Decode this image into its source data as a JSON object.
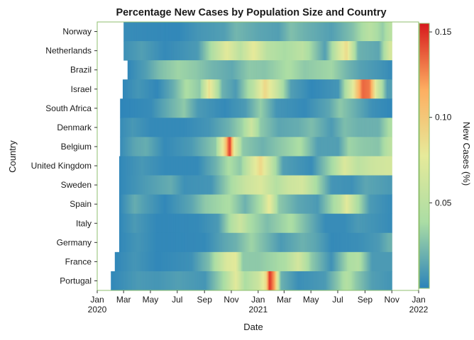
{
  "chart_data": {
    "type": "heatmap",
    "title": "Percentage New Cases by Population Size and Country",
    "xlabel": "Date",
    "ylabel": "Country",
    "colorbar_label": "New Cases (%)",
    "countries": [
      "Norway",
      "Netherlands",
      "Brazil",
      "Israel",
      "South Africa",
      "Denmark",
      "Belgium",
      "United Kingdom",
      "Sweden",
      "Spain",
      "Italy",
      "Germany",
      "France",
      "Portugal"
    ],
    "x_range": [
      "2020-01-01",
      "2022-01-01"
    ],
    "x_ticks": [
      {
        "date": "2020-01-01",
        "label": "Jan",
        "sub": "2020"
      },
      {
        "date": "2020-03-01",
        "label": "Mar",
        "sub": ""
      },
      {
        "date": "2020-05-01",
        "label": "May",
        "sub": ""
      },
      {
        "date": "2020-07-01",
        "label": "Jul",
        "sub": ""
      },
      {
        "date": "2020-09-01",
        "label": "Sep",
        "sub": ""
      },
      {
        "date": "2020-11-01",
        "label": "Nov",
        "sub": ""
      },
      {
        "date": "2021-01-01",
        "label": "Jan",
        "sub": "2021"
      },
      {
        "date": "2021-03-01",
        "label": "Mar",
        "sub": ""
      },
      {
        "date": "2021-05-01",
        "label": "May",
        "sub": ""
      },
      {
        "date": "2021-07-01",
        "label": "Jul",
        "sub": ""
      },
      {
        "date": "2021-09-01",
        "label": "Sep",
        "sub": ""
      },
      {
        "date": "2021-11-01",
        "label": "Nov",
        "sub": ""
      },
      {
        "date": "2022-01-01",
        "label": "Jan",
        "sub": "2022"
      }
    ],
    "colorbar_ticks": [
      {
        "value": 0.05,
        "label": "0.05"
      },
      {
        "value": 0.1,
        "label": "0.10"
      },
      {
        "value": 0.15,
        "label": "0.15"
      }
    ],
    "color_range": [
      0,
      0.155
    ],
    "colorscale": [
      "#2b83ba",
      "#abdda4",
      "#e6ea9a",
      "#fdae61",
      "#d7191c"
    ],
    "data_end": "2021-11-01",
    "series": [
      {
        "name": "Norway",
        "start": "2020-03-01",
        "values": [
          [
            "2020-03-01",
            0.004
          ],
          [
            "2020-07-01",
            0.002
          ],
          [
            "2020-08-15",
            0.008
          ],
          [
            "2020-10-15",
            0.012
          ],
          [
            "2020-11-10",
            0.022
          ],
          [
            "2021-01-01",
            0.015
          ],
          [
            "2021-02-15",
            0.012
          ],
          [
            "2021-03-15",
            0.026
          ],
          [
            "2021-04-15",
            0.02
          ],
          [
            "2021-06-15",
            0.012
          ],
          [
            "2021-08-01",
            0.026
          ],
          [
            "2021-09-10",
            0.048
          ],
          [
            "2021-10-10",
            0.032
          ],
          [
            "2021-10-25",
            0.048
          ]
        ]
      },
      {
        "name": "Netherlands",
        "start": "2020-03-01",
        "values": [
          [
            "2020-03-01",
            0.006
          ],
          [
            "2020-04-10",
            0.012
          ],
          [
            "2020-06-01",
            0.003
          ],
          [
            "2020-08-15",
            0.01
          ],
          [
            "2020-09-20",
            0.045
          ],
          [
            "2020-10-20",
            0.075
          ],
          [
            "2020-11-20",
            0.05
          ],
          [
            "2020-12-20",
            0.078
          ],
          [
            "2021-01-20",
            0.048
          ],
          [
            "2021-03-01",
            0.038
          ],
          [
            "2021-04-10",
            0.05
          ],
          [
            "2021-06-01",
            0.012
          ],
          [
            "2021-07-05",
            0.07
          ],
          [
            "2021-07-20",
            0.088
          ],
          [
            "2021-08-15",
            0.02
          ],
          [
            "2021-10-01",
            0.015
          ],
          [
            "2021-10-25",
            0.065
          ]
        ]
      },
      {
        "name": "Brazil",
        "start": "2020-03-10",
        "values": [
          [
            "2020-03-10",
            0.002
          ],
          [
            "2020-04-20",
            0.012
          ],
          [
            "2020-05-20",
            0.025
          ],
          [
            "2020-07-01",
            0.035
          ],
          [
            "2020-08-10",
            0.03
          ],
          [
            "2020-09-15",
            0.022
          ],
          [
            "2020-11-01",
            0.016
          ],
          [
            "2020-12-10",
            0.03
          ],
          [
            "2021-01-15",
            0.028
          ],
          [
            "2021-03-10",
            0.04
          ],
          [
            "2021-04-15",
            0.03
          ],
          [
            "2021-06-15",
            0.036
          ],
          [
            "2021-07-20",
            0.022
          ],
          [
            "2021-08-20",
            0.013
          ],
          [
            "2021-10-01",
            0.008
          ],
          [
            "2021-10-25",
            0.004
          ]
        ]
      },
      {
        "name": "Israel",
        "start": "2020-02-28",
        "values": [
          [
            "2020-02-28",
            0.002
          ],
          [
            "2020-04-01",
            0.008
          ],
          [
            "2020-05-15",
            0.002
          ],
          [
            "2020-06-20",
            0.018
          ],
          [
            "2020-07-20",
            0.04
          ],
          [
            "2020-08-20",
            0.03
          ],
          [
            "2020-09-10",
            0.085
          ],
          [
            "2020-10-10",
            0.02
          ],
          [
            "2020-11-10",
            0.01
          ],
          [
            "2020-12-20",
            0.05
          ],
          [
            "2021-01-15",
            0.09
          ],
          [
            "2021-02-10",
            0.06
          ],
          [
            "2021-03-15",
            0.012
          ],
          [
            "2021-05-01",
            0.002
          ],
          [
            "2021-07-01",
            0.008
          ],
          [
            "2021-08-01",
            0.07
          ],
          [
            "2021-08-25",
            0.135
          ],
          [
            "2021-09-10",
            0.13
          ],
          [
            "2021-09-25",
            0.07
          ],
          [
            "2021-10-20",
            0.012
          ]
        ]
      },
      {
        "name": "South Africa",
        "start": "2020-02-22",
        "values": [
          [
            "2020-02-22",
            0.001
          ],
          [
            "2020-05-01",
            0.004
          ],
          [
            "2020-06-15",
            0.02
          ],
          [
            "2020-07-15",
            0.03
          ],
          [
            "2020-08-15",
            0.01
          ],
          [
            "2020-10-15",
            0.003
          ],
          [
            "2020-12-01",
            0.01
          ],
          [
            "2021-01-05",
            0.032
          ],
          [
            "2021-02-10",
            0.008
          ],
          [
            "2021-04-15",
            0.003
          ],
          [
            "2021-06-10",
            0.015
          ],
          [
            "2021-07-05",
            0.03
          ],
          [
            "2021-08-10",
            0.018
          ],
          [
            "2021-09-15",
            0.006
          ],
          [
            "2021-10-25",
            0.002
          ]
        ]
      },
      {
        "name": "Denmark",
        "start": "2020-02-22",
        "values": [
          [
            "2020-02-22",
            0.004
          ],
          [
            "2020-03-20",
            0.009
          ],
          [
            "2020-05-01",
            0.003
          ],
          [
            "2020-07-15",
            0.003
          ],
          [
            "2020-09-10",
            0.008
          ],
          [
            "2020-10-25",
            0.02
          ],
          [
            "2020-11-25",
            0.035
          ],
          [
            "2020-12-15",
            0.06
          ],
          [
            "2021-01-05",
            0.03
          ],
          [
            "2021-02-15",
            0.015
          ],
          [
            "2021-04-01",
            0.018
          ],
          [
            "2021-05-01",
            0.025
          ],
          [
            "2021-06-15",
            0.01
          ],
          [
            "2021-07-15",
            0.025
          ],
          [
            "2021-08-15",
            0.02
          ],
          [
            "2021-10-01",
            0.02
          ],
          [
            "2021-10-25",
            0.04
          ]
        ]
      },
      {
        "name": "Belgium",
        "start": "2020-02-22",
        "values": [
          [
            "2020-02-22",
            0.004
          ],
          [
            "2020-03-25",
            0.015
          ],
          [
            "2020-04-20",
            0.018
          ],
          [
            "2020-06-01",
            0.003
          ],
          [
            "2020-08-01",
            0.01
          ],
          [
            "2020-09-25",
            0.03
          ],
          [
            "2020-10-15",
            0.09
          ],
          [
            "2020-10-27",
            0.15
          ],
          [
            "2020-11-05",
            0.08
          ],
          [
            "2020-11-25",
            0.03
          ],
          [
            "2021-01-10",
            0.02
          ],
          [
            "2021-03-15",
            0.035
          ],
          [
            "2021-04-05",
            0.04
          ],
          [
            "2021-05-15",
            0.012
          ],
          [
            "2021-07-01",
            0.012
          ],
          [
            "2021-07-25",
            0.035
          ],
          [
            "2021-08-25",
            0.03
          ],
          [
            "2021-10-01",
            0.028
          ],
          [
            "2021-10-25",
            0.05
          ]
        ]
      },
      {
        "name": "United Kingdom",
        "start": "2020-02-20",
        "values": [
          [
            "2020-02-20",
            0.002
          ],
          [
            "2020-04-10",
            0.009
          ],
          [
            "2020-06-01",
            0.003
          ],
          [
            "2020-08-15",
            0.003
          ],
          [
            "2020-09-25",
            0.02
          ],
          [
            "2020-10-25",
            0.04
          ],
          [
            "2020-11-20",
            0.03
          ],
          [
            "2020-12-15",
            0.065
          ],
          [
            "2021-01-05",
            0.09
          ],
          [
            "2021-01-25",
            0.06
          ],
          [
            "2021-02-25",
            0.012
          ],
          [
            "2021-05-01",
            0.004
          ],
          [
            "2021-06-20",
            0.04
          ],
          [
            "2021-07-15",
            0.07
          ],
          [
            "2021-08-15",
            0.05
          ],
          [
            "2021-09-15",
            0.06
          ],
          [
            "2021-10-20",
            0.065
          ]
        ]
      },
      {
        "name": "Sweden",
        "start": "2020-02-20",
        "values": [
          [
            "2020-02-20",
            0.002
          ],
          [
            "2020-04-15",
            0.01
          ],
          [
            "2020-06-15",
            0.018
          ],
          [
            "2020-07-15",
            0.006
          ],
          [
            "2020-09-15",
            0.008
          ],
          [
            "2020-10-25",
            0.035
          ],
          [
            "2020-12-05",
            0.06
          ],
          [
            "2021-01-05",
            0.07
          ],
          [
            "2021-02-10",
            0.045
          ],
          [
            "2021-03-10",
            0.06
          ],
          [
            "2021-04-10",
            0.065
          ],
          [
            "2021-05-10",
            0.04
          ],
          [
            "2021-06-15",
            0.008
          ],
          [
            "2021-08-01",
            0.006
          ],
          [
            "2021-09-01",
            0.015
          ],
          [
            "2021-10-25",
            0.01
          ]
        ]
      },
      {
        "name": "Spain",
        "start": "2020-02-20",
        "values": [
          [
            "2020-02-20",
            0.002
          ],
          [
            "2020-03-25",
            0.018
          ],
          [
            "2020-04-15",
            0.012
          ],
          [
            "2020-06-01",
            0.002
          ],
          [
            "2020-08-01",
            0.015
          ],
          [
            "2020-09-01",
            0.03
          ],
          [
            "2020-10-25",
            0.04
          ],
          [
            "2020-12-01",
            0.02
          ],
          [
            "2021-01-05",
            0.04
          ],
          [
            "2021-01-25",
            0.08
          ],
          [
            "2021-02-15",
            0.03
          ],
          [
            "2021-04-01",
            0.015
          ],
          [
            "2021-05-15",
            0.01
          ],
          [
            "2021-07-05",
            0.05
          ],
          [
            "2021-07-20",
            0.075
          ],
          [
            "2021-08-10",
            0.045
          ],
          [
            "2021-09-10",
            0.01
          ],
          [
            "2021-10-25",
            0.004
          ]
        ]
      },
      {
        "name": "Italy",
        "start": "2020-02-20",
        "values": [
          [
            "2020-02-20",
            0.002
          ],
          [
            "2020-03-25",
            0.01
          ],
          [
            "2020-05-15",
            0.002
          ],
          [
            "2020-08-15",
            0.003
          ],
          [
            "2020-10-01",
            0.01
          ],
          [
            "2020-11-01",
            0.045
          ],
          [
            "2020-11-20",
            0.06
          ],
          [
            "2020-12-10",
            0.04
          ],
          [
            "2021-01-20",
            0.025
          ],
          [
            "2021-03-15",
            0.04
          ],
          [
            "2021-04-25",
            0.02
          ],
          [
            "2021-06-01",
            0.004
          ],
          [
            "2021-07-15",
            0.004
          ],
          [
            "2021-08-15",
            0.01
          ],
          [
            "2021-10-25",
            0.004
          ]
        ]
      },
      {
        "name": "Germany",
        "start": "2020-02-20",
        "values": [
          [
            "2020-02-20",
            0.002
          ],
          [
            "2020-04-01",
            0.008
          ],
          [
            "2020-05-15",
            0.002
          ],
          [
            "2020-09-01",
            0.003
          ],
          [
            "2020-10-15",
            0.015
          ],
          [
            "2020-11-10",
            0.02
          ],
          [
            "2020-12-15",
            0.035
          ],
          [
            "2021-01-10",
            0.025
          ],
          [
            "2021-02-20",
            0.01
          ],
          [
            "2021-04-10",
            0.02
          ],
          [
            "2021-05-10",
            0.015
          ],
          [
            "2021-06-15",
            0.003
          ],
          [
            "2021-08-15",
            0.005
          ],
          [
            "2021-10-01",
            0.01
          ],
          [
            "2021-10-25",
            0.02
          ]
        ]
      },
      {
        "name": "France",
        "start": "2020-02-10",
        "values": [
          [
            "2020-02-10",
            0.002
          ],
          [
            "2020-03-25",
            0.008
          ],
          [
            "2020-05-15",
            0.002
          ],
          [
            "2020-08-01",
            0.006
          ],
          [
            "2020-09-10",
            0.025
          ],
          [
            "2020-10-20",
            0.07
          ],
          [
            "2020-11-10",
            0.075
          ],
          [
            "2020-11-25",
            0.03
          ],
          [
            "2021-01-01",
            0.03
          ],
          [
            "2021-03-01",
            0.04
          ],
          [
            "2021-04-01",
            0.065
          ],
          [
            "2021-05-01",
            0.03
          ],
          [
            "2021-06-15",
            0.006
          ],
          [
            "2021-07-25",
            0.04
          ],
          [
            "2021-08-15",
            0.045
          ],
          [
            "2021-09-15",
            0.01
          ],
          [
            "2021-10-25",
            0.01
          ]
        ]
      },
      {
        "name": "Portugal",
        "start": "2020-02-01",
        "values": [
          [
            "2020-02-01",
            0.002
          ],
          [
            "2020-04-01",
            0.01
          ],
          [
            "2020-05-15",
            0.008
          ],
          [
            "2020-07-01",
            0.012
          ],
          [
            "2020-09-01",
            0.008
          ],
          [
            "2020-10-15",
            0.04
          ],
          [
            "2020-11-10",
            0.075
          ],
          [
            "2020-12-01",
            0.04
          ],
          [
            "2021-01-01",
            0.06
          ],
          [
            "2021-01-18",
            0.09
          ],
          [
            "2021-01-25",
            0.15
          ],
          [
            "2021-02-05",
            0.12
          ],
          [
            "2021-02-20",
            0.02
          ],
          [
            "2021-04-01",
            0.005
          ],
          [
            "2021-06-01",
            0.01
          ],
          [
            "2021-07-01",
            0.03
          ],
          [
            "2021-07-20",
            0.045
          ],
          [
            "2021-08-10",
            0.03
          ],
          [
            "2021-09-15",
            0.012
          ],
          [
            "2021-10-25",
            0.008
          ]
        ]
      }
    ]
  }
}
